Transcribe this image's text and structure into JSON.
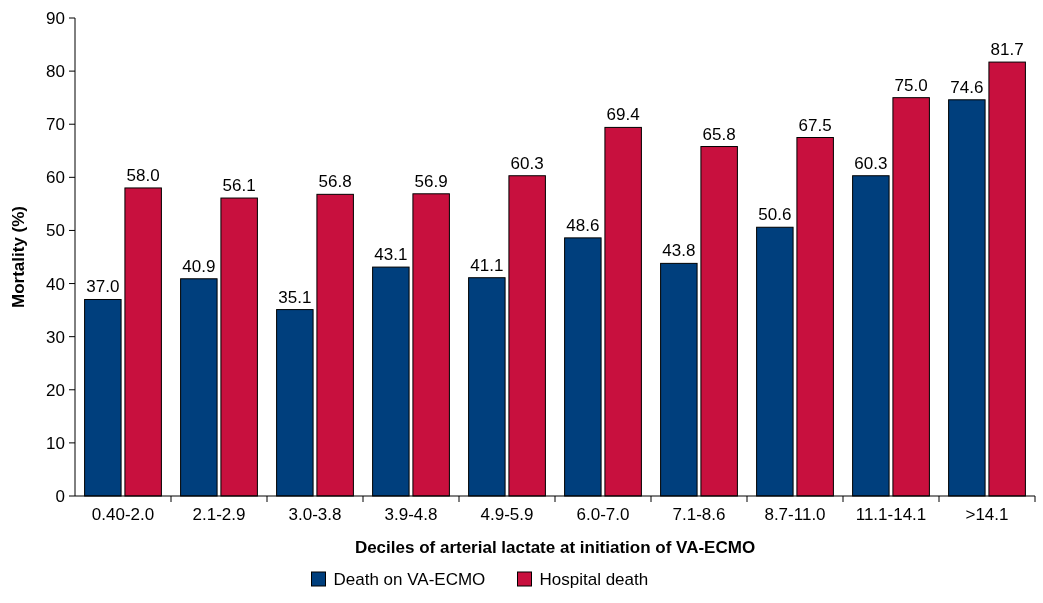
{
  "chart_data": {
    "type": "bar",
    "xlabel": "Deciles of arterial lactate at initiation of VA-ECMO",
    "ylabel": "Mortality (%)",
    "categories": [
      "0.40-2.0",
      "2.1-2.9",
      "3.0-3.8",
      "3.9-4.8",
      "4.9-5.9",
      "6.0-7.0",
      "7.1-8.6",
      "8.7-11.0",
      "11.1-14.1",
      ">14.1"
    ],
    "series": [
      {
        "name": "Death on VA-ECMO",
        "color": "#003f7d",
        "values": [
          37.0,
          40.9,
          35.1,
          43.1,
          41.1,
          48.6,
          43.8,
          50.6,
          60.3,
          74.6
        ],
        "value_labels": [
          "37.0",
          "40.9",
          "35.1",
          "43.1",
          "41.1",
          "48.6",
          "43.8",
          "50.6",
          "60.3",
          "74.6"
        ]
      },
      {
        "name": "Hospital death",
        "color": "#c8103e",
        "values": [
          58.0,
          56.1,
          56.8,
          56.9,
          60.3,
          69.4,
          65.8,
          67.5,
          75.0,
          81.7
        ],
        "value_labels": [
          "58.0",
          "56.1",
          "56.8",
          "56.9",
          "60.3",
          "69.4",
          "65.8",
          "67.5",
          "75.0",
          "81.7"
        ]
      }
    ],
    "ylim": [
      0,
      90
    ],
    "yticks": [
      0,
      10,
      20,
      30,
      40,
      50,
      60,
      70,
      80,
      90
    ],
    "grid": false,
    "legend": "bottom"
  }
}
